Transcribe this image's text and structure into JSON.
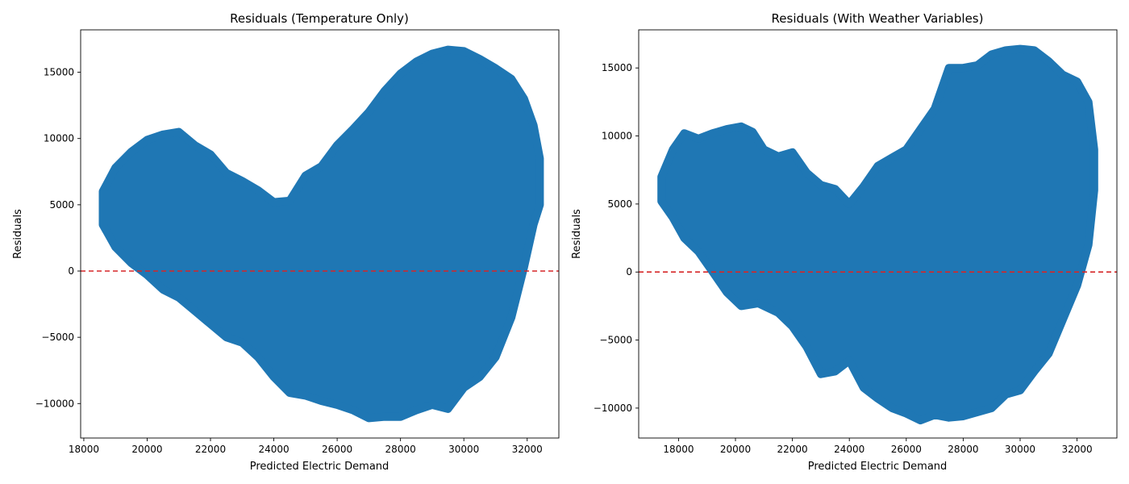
{
  "chart_data": [
    {
      "type": "scatter",
      "title": "Residuals (Temperature Only)",
      "xlabel": "Predicted Electric Demand",
      "ylabel": "Residuals",
      "xlim": [
        17900,
        33000
      ],
      "ylim": [
        -12600,
        18200
      ],
      "xticks": [
        18000,
        20000,
        22000,
        24000,
        26000,
        28000,
        30000,
        32000
      ],
      "yticks": [
        -10000,
        -5000,
        0,
        5000,
        10000,
        15000
      ],
      "reference_line": {
        "y": 0,
        "color": "#d62728",
        "style": "dashed"
      },
      "point_color": "#1f77b4",
      "grid": false,
      "upper_envelope": [
        [
          18600,
          6000
        ],
        [
          19000,
          7800
        ],
        [
          19500,
          9000
        ],
        [
          20000,
          9900
        ],
        [
          20500,
          10300
        ],
        [
          21000,
          10500
        ],
        [
          21500,
          9500
        ],
        [
          22000,
          8800
        ],
        [
          22500,
          7400
        ],
        [
          23000,
          6800
        ],
        [
          23500,
          6100
        ],
        [
          24000,
          5200
        ],
        [
          24500,
          5300
        ],
        [
          25000,
          7200
        ],
        [
          25500,
          7900
        ],
        [
          26000,
          9500
        ],
        [
          26500,
          10700
        ],
        [
          27000,
          12000
        ],
        [
          27500,
          13600
        ],
        [
          28000,
          14900
        ],
        [
          28500,
          15800
        ],
        [
          29000,
          16400
        ],
        [
          29500,
          16700
        ],
        [
          30000,
          16600
        ],
        [
          30500,
          16000
        ],
        [
          31000,
          15300
        ],
        [
          31500,
          14500
        ],
        [
          31900,
          13000
        ],
        [
          32200,
          11000
        ],
        [
          32400,
          8500
        ]
      ],
      "lower_envelope": [
        [
          18600,
          3500
        ],
        [
          19000,
          1800
        ],
        [
          19500,
          600
        ],
        [
          20000,
          -300
        ],
        [
          20500,
          -1400
        ],
        [
          21000,
          -2000
        ],
        [
          21500,
          -3000
        ],
        [
          22000,
          -4000
        ],
        [
          22500,
          -5000
        ],
        [
          23000,
          -5400
        ],
        [
          23500,
          -6500
        ],
        [
          24000,
          -8000
        ],
        [
          24500,
          -9200
        ],
        [
          25000,
          -9400
        ],
        [
          25500,
          -9800
        ],
        [
          26000,
          -10100
        ],
        [
          26500,
          -10500
        ],
        [
          27000,
          -11100
        ],
        [
          27500,
          -11000
        ],
        [
          28000,
          -11000
        ],
        [
          28500,
          -10500
        ],
        [
          29000,
          -10100
        ],
        [
          29500,
          -10400
        ],
        [
          30000,
          -8800
        ],
        [
          30500,
          -8000
        ],
        [
          31000,
          -6500
        ],
        [
          31500,
          -3500
        ],
        [
          31900,
          300
        ],
        [
          32200,
          3500
        ],
        [
          32400,
          5000
        ]
      ]
    },
    {
      "type": "scatter",
      "title": "Residuals (With Weather Variables)",
      "xlabel": "Predicted Electric Demand",
      "ylabel": "Residuals",
      "xlim": [
        16600,
        33400
      ],
      "ylim": [
        -12200,
        17800
      ],
      "xticks": [
        18000,
        20000,
        22000,
        24000,
        26000,
        28000,
        30000,
        32000
      ],
      "yticks": [
        -10000,
        -5000,
        0,
        5000,
        10000,
        15000
      ],
      "reference_line": {
        "y": 0,
        "color": "#d62728",
        "style": "dashed"
      },
      "point_color": "#1f77b4",
      "grid": false,
      "upper_envelope": [
        [
          17400,
          7000
        ],
        [
          17800,
          9000
        ],
        [
          18200,
          10200
        ],
        [
          18700,
          9800
        ],
        [
          19200,
          10200
        ],
        [
          19700,
          10500
        ],
        [
          20200,
          10700
        ],
        [
          20600,
          10300
        ],
        [
          21000,
          9000
        ],
        [
          21500,
          8500
        ],
        [
          22000,
          8800
        ],
        [
          22500,
          7300
        ],
        [
          23000,
          6400
        ],
        [
          23500,
          6100
        ],
        [
          24000,
          5000
        ],
        [
          24500,
          6300
        ],
        [
          25000,
          7800
        ],
        [
          25500,
          8400
        ],
        [
          26000,
          9000
        ],
        [
          26500,
          10500
        ],
        [
          27000,
          12000
        ],
        [
          27500,
          15000
        ],
        [
          28000,
          15000
        ],
        [
          28500,
          15200
        ],
        [
          29000,
          16000
        ],
        [
          29500,
          16300
        ],
        [
          30000,
          16400
        ],
        [
          30500,
          16300
        ],
        [
          31000,
          15500
        ],
        [
          31500,
          14500
        ],
        [
          32000,
          14000
        ],
        [
          32400,
          12500
        ],
        [
          32600,
          9000
        ]
      ],
      "lower_envelope": [
        [
          17400,
          5200
        ],
        [
          17800,
          4000
        ],
        [
          18200,
          2500
        ],
        [
          18700,
          1500
        ],
        [
          19200,
          0
        ],
        [
          19700,
          -1500
        ],
        [
          20200,
          -2500
        ],
        [
          20800,
          -2300
        ],
        [
          21500,
          -3000
        ],
        [
          22000,
          -4000
        ],
        [
          22500,
          -5500
        ],
        [
          23000,
          -7500
        ],
        [
          23500,
          -7300
        ],
        [
          24000,
          -6500
        ],
        [
          24500,
          -8500
        ],
        [
          25000,
          -9300
        ],
        [
          25500,
          -10000
        ],
        [
          26000,
          -10400
        ],
        [
          26500,
          -10900
        ],
        [
          27000,
          -10500
        ],
        [
          27500,
          -10700
        ],
        [
          28000,
          -10600
        ],
        [
          28500,
          -10300
        ],
        [
          29000,
          -10000
        ],
        [
          29500,
          -9000
        ],
        [
          30000,
          -8700
        ],
        [
          30500,
          -7300
        ],
        [
          31000,
          -6000
        ],
        [
          31500,
          -3500
        ],
        [
          32000,
          -1000
        ],
        [
          32400,
          2000
        ],
        [
          32600,
          6000
        ]
      ]
    }
  ]
}
